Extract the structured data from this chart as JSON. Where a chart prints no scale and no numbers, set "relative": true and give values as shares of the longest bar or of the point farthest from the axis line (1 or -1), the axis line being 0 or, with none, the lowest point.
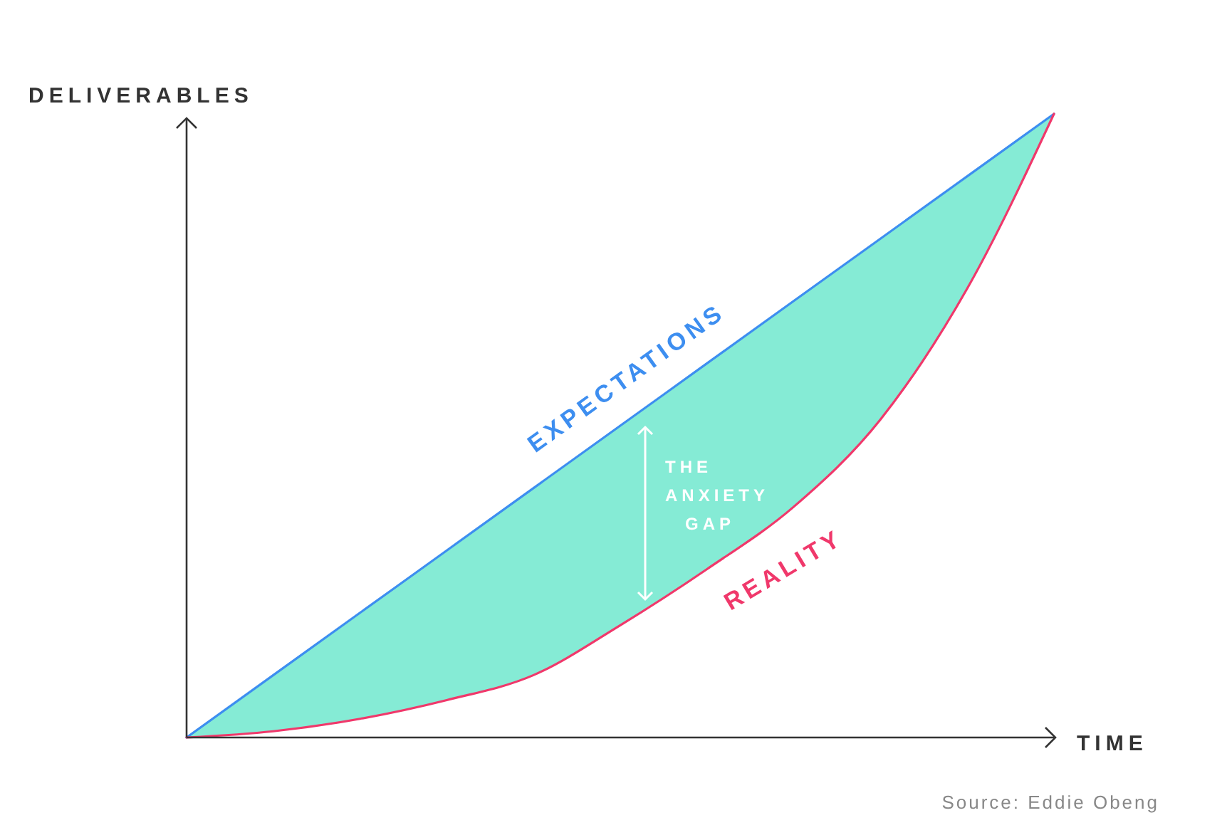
{
  "chart_data": {
    "type": "line",
    "relative": true,
    "xlabel": "TIME",
    "ylabel": "DELIVERABLES",
    "categories": [
      null,
      null,
      null,
      null,
      null,
      null,
      null,
      null,
      null,
      null,
      null
    ],
    "series": [
      {
        "name": "EXPECTATIONS",
        "color": "#3d8ef0",
        "values": [
          0,
          0.1,
          0.2,
          0.3,
          0.4,
          0.5,
          0.6,
          0.7,
          0.8,
          0.9,
          1
        ]
      },
      {
        "name": "REALITY",
        "color": "#f0386b",
        "values": [
          0,
          0.01,
          0.03,
          0.06,
          0.1,
          0.18,
          0.27,
          0.37,
          0.51,
          0.72,
          1
        ]
      }
    ],
    "annotations": [
      "THE ANXIETY GAP",
      "Source: Eddie Obeng"
    ],
    "grid": false,
    "legend": false,
    "marker": "none",
    "line_style": "solid"
  }
}
